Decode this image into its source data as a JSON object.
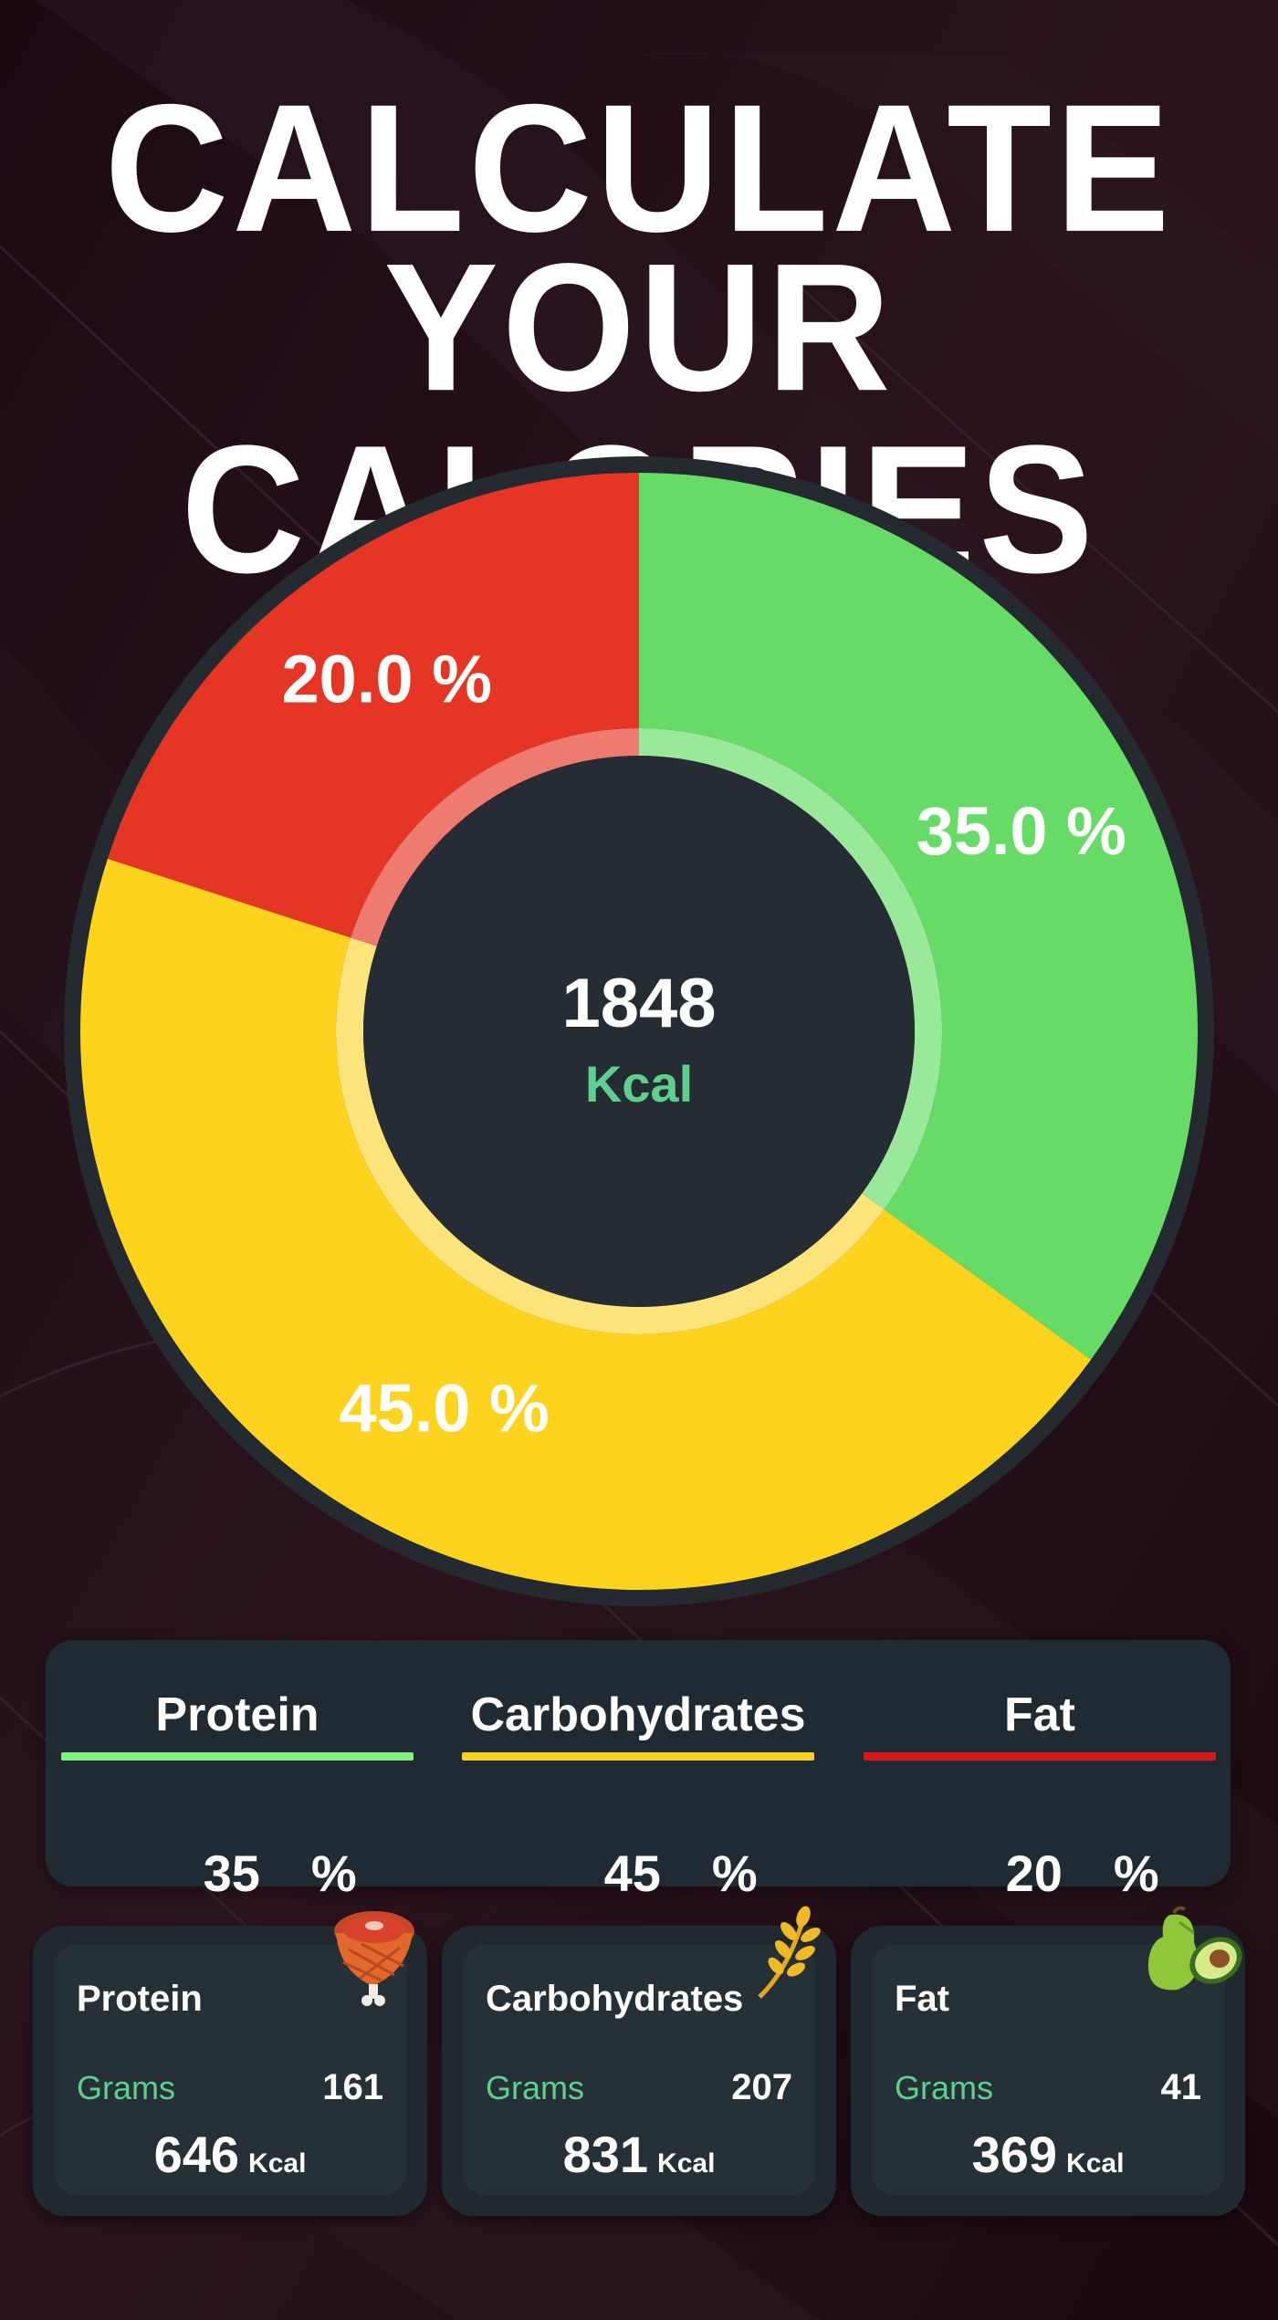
{
  "headline": {
    "line1": "CALCULATE",
    "line2": "YOUR CALORIES"
  },
  "colors": {
    "background": "#1e0c15",
    "protein": "#66db66",
    "carbohydrates": "#fdd31d",
    "fat": "#e53524",
    "center": "#262c34",
    "kcal_label": "#5fcf90",
    "panel": "#1f2a33"
  },
  "chart_data": {
    "type": "pie",
    "center_value": "1848",
    "center_unit": "Kcal",
    "slices": [
      {
        "label": "35.0 %",
        "value": 35,
        "color": "#66db66",
        "inner_color": "#9ae89a"
      },
      {
        "label": "45.0 %",
        "value": 45,
        "color": "#fdd31d",
        "inner_color": "#fde47a"
      },
      {
        "label": "20.0 %",
        "value": 20,
        "color": "#e53524",
        "inner_color": "#ef7b70"
      }
    ]
  },
  "macro_panel": {
    "items": [
      {
        "name": "Protein",
        "value": "35",
        "unit": "%",
        "color": "#7df27a"
      },
      {
        "name": "Carbohydrates",
        "value": "45",
        "unit": "%",
        "color": "#f8d020"
      },
      {
        "name": "Fat",
        "value": "20",
        "unit": "%",
        "color": "#d41a1a"
      }
    ]
  },
  "cards": [
    {
      "title": "Protein",
      "grams_label": "Grams",
      "grams": "161",
      "kcal": "646",
      "kcal_unit": "Kcal",
      "icon": "meat-icon"
    },
    {
      "title": "Carbohydrates",
      "grams_label": "Grams",
      "grams": "207",
      "kcal": "831",
      "kcal_unit": "Kcal",
      "icon": "wheat-icon"
    },
    {
      "title": "Fat",
      "grams_label": "Grams",
      "grams": "41",
      "kcal": "369",
      "kcal_unit": "Kcal",
      "icon": "avocado-icon"
    }
  ]
}
